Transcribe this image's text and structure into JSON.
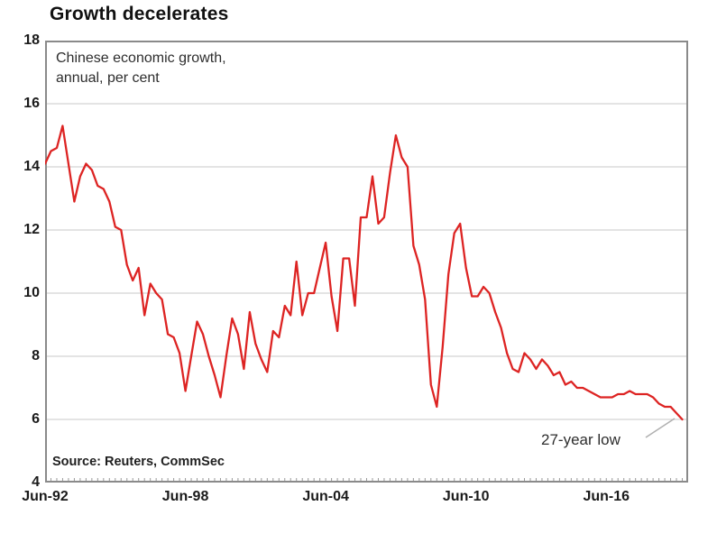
{
  "title": "Growth decelerates",
  "subtitle": {
    "line1": "Chinese economic growth,",
    "line2": "annual, per cent"
  },
  "source": "Source: Reuters, CommSec",
  "annotation": "27-year low",
  "colors": {
    "line": "#dd2423",
    "grid": "#c9c9c9",
    "frame": "#8a8a8a",
    "tick": "#9a9a9a",
    "callout": "#b0b0b0"
  },
  "chart_data": {
    "type": "line",
    "title": "Growth decelerates",
    "subtitle": "Chinese economic growth, annual, per cent",
    "series_name": "China GDP growth, annual % (quarterly observations)",
    "frequency": "quarterly",
    "start": "Jun-1992",
    "end": "Sep-2019",
    "xlabel": "",
    "ylabel": "per cent",
    "ylim": [
      4,
      18
    ],
    "y_ticks": [
      18,
      16,
      14,
      12,
      10,
      8,
      6,
      4
    ],
    "x_tick_labels": [
      "Jun-92",
      "Jun-98",
      "Jun-04",
      "Jun-10",
      "Jun-16"
    ],
    "x_tick_quarter_index": [
      0,
      24,
      48,
      72,
      96
    ],
    "x_axis_end_quarter_index": 110,
    "grid": "horizontal",
    "legend": "none",
    "annotation": {
      "text": "27-year low",
      "points_to_value": 6.0,
      "points_to_date": "Sep-2019"
    },
    "values": [
      14.1,
      14.5,
      14.6,
      15.3,
      14.1,
      12.9,
      13.7,
      14.1,
      13.9,
      13.4,
      13.3,
      12.9,
      12.1,
      12.0,
      10.9,
      10.4,
      10.8,
      9.3,
      10.3,
      10.0,
      9.8,
      8.7,
      8.6,
      8.1,
      6.9,
      8.0,
      9.1,
      8.7,
      8.0,
      7.4,
      6.7,
      8.0,
      9.2,
      8.7,
      7.6,
      9.4,
      8.4,
      7.9,
      7.5,
      8.8,
      8.6,
      9.6,
      9.3,
      11.0,
      9.3,
      10.0,
      10.0,
      10.8,
      11.6,
      9.9,
      8.8,
      11.1,
      11.1,
      9.6,
      12.4,
      12.4,
      13.7,
      12.2,
      12.4,
      13.8,
      15.0,
      14.3,
      14.0,
      11.5,
      10.9,
      9.8,
      7.1,
      6.4,
      8.3,
      10.6,
      11.9,
      12.2,
      10.8,
      9.9,
      9.9,
      10.2,
      10.0,
      9.4,
      8.9,
      8.1,
      7.6,
      7.5,
      8.1,
      7.9,
      7.6,
      7.9,
      7.7,
      7.4,
      7.5,
      7.1,
      7.2,
      7.0,
      7.0,
      6.9,
      6.8,
      6.7,
      6.7,
      6.7,
      6.8,
      6.8,
      6.9,
      6.8,
      6.8,
      6.8,
      6.7,
      6.5,
      6.4,
      6.4,
      6.2,
      6.0
    ]
  }
}
